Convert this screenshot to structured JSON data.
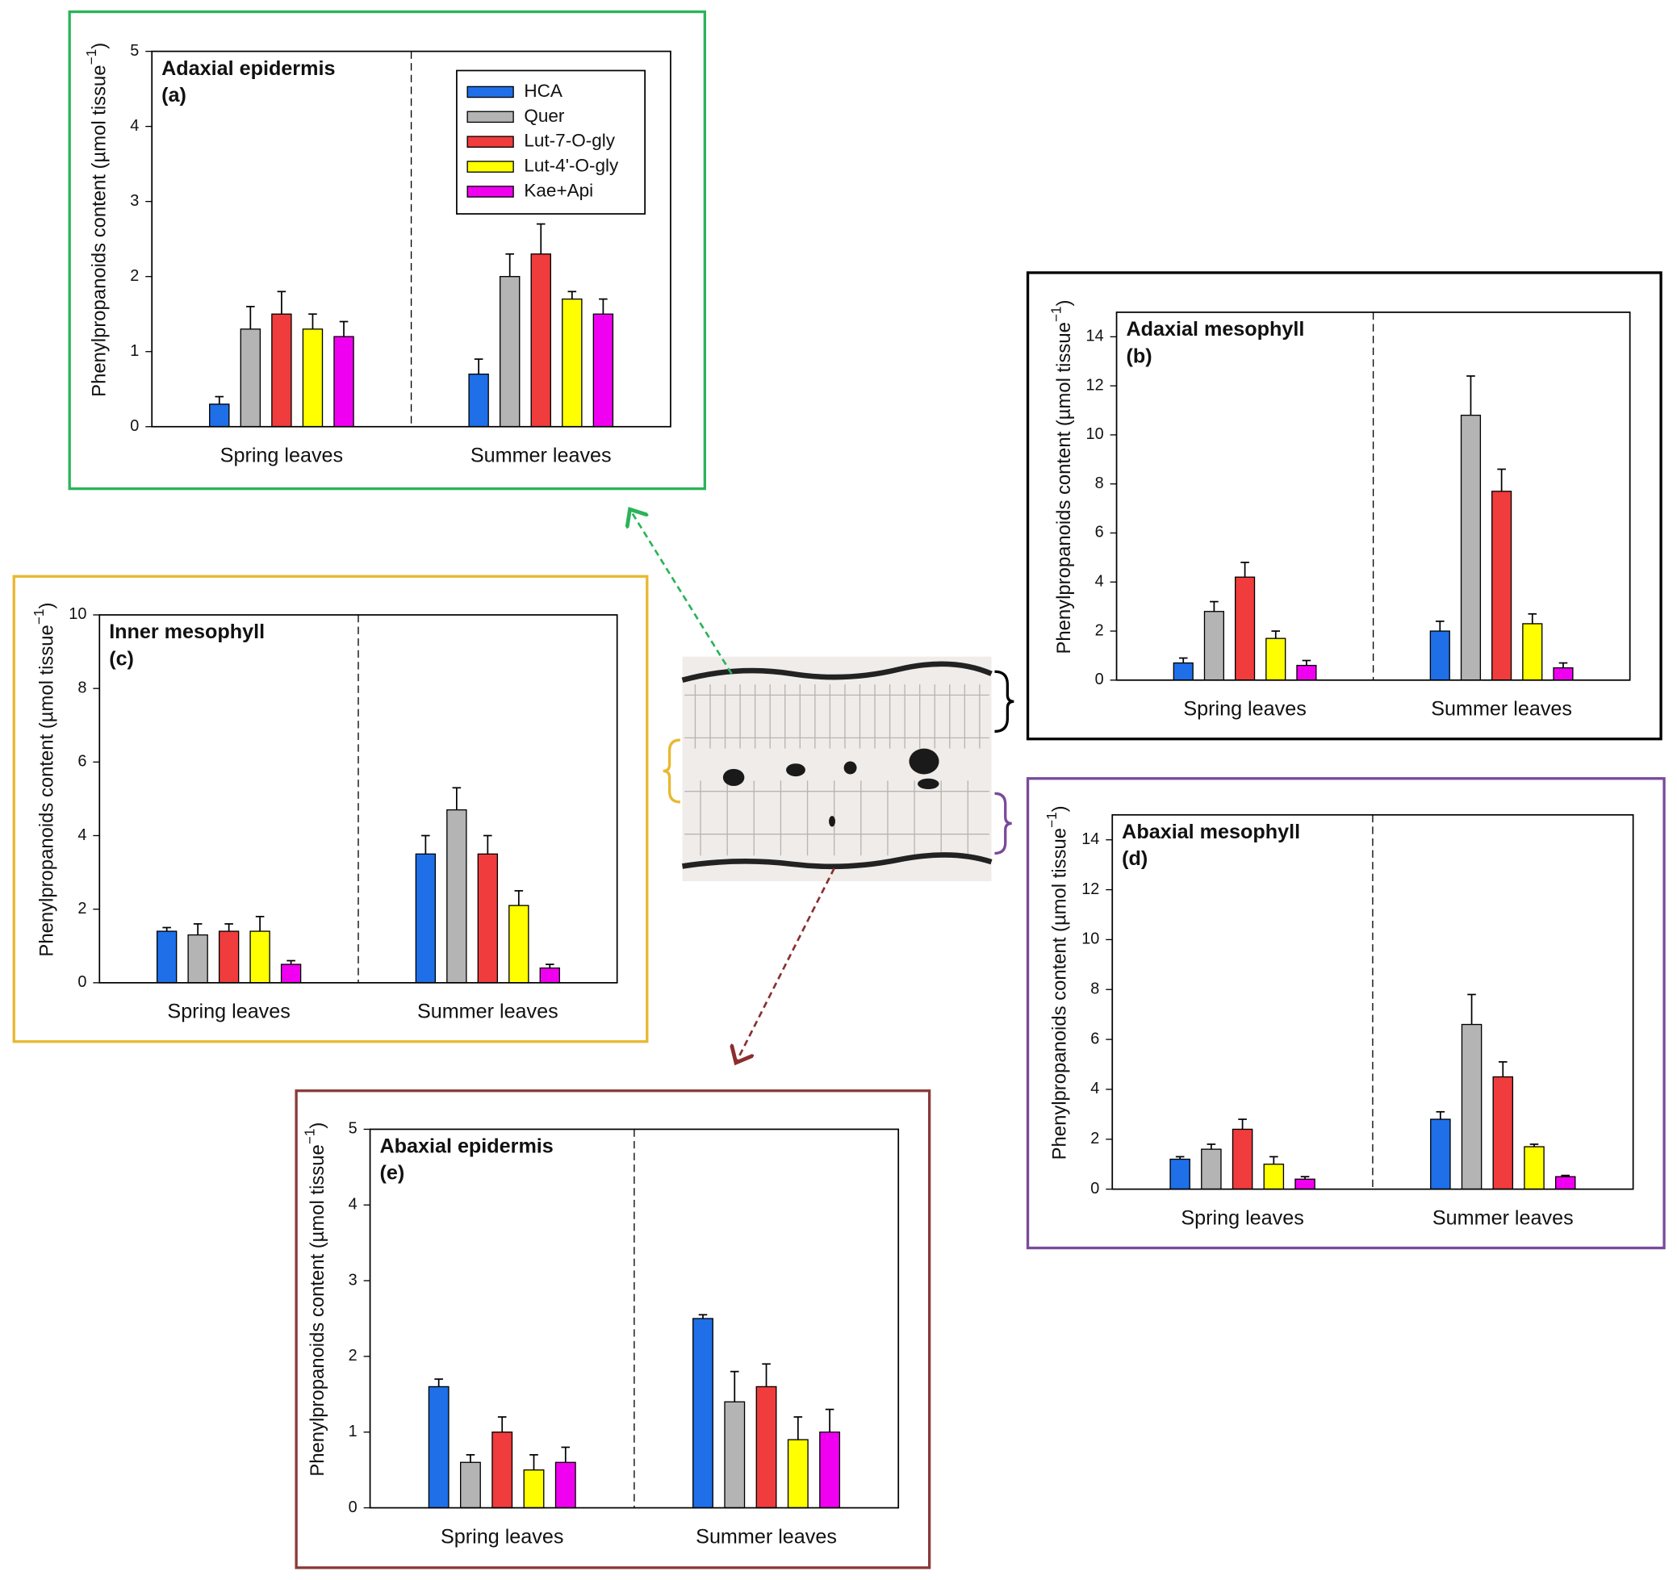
{
  "chart_data": [
    {
      "type": "bar",
      "title": "Adaxial epidermis",
      "panel_label": "(a)",
      "ylabel": {
        "text": "Phenylpropanoids content  (µmol tissue",
        "sup": "−1",
        "close": ")"
      },
      "categories": [
        "Spring leaves",
        "Summer leaves"
      ],
      "ylim": [
        0,
        5
      ],
      "yticks": [
        0,
        1,
        2,
        3,
        4,
        5
      ],
      "series": [
        {
          "name": "HCA",
          "color": "#1e6fe8",
          "values": [
            0.3,
            0.7
          ],
          "errors": [
            0.1,
            0.2
          ]
        },
        {
          "name": "Quer",
          "color": "#b4b4b4",
          "values": [
            1.3,
            2.0
          ],
          "errors": [
            0.3,
            0.3
          ]
        },
        {
          "name": "Lut-7-O-gly",
          "color": "#f03c3c",
          "values": [
            1.5,
            2.3
          ],
          "errors": [
            0.3,
            0.4
          ]
        },
        {
          "name": "Lut-4'-O-gly",
          "color": "#ffff00",
          "values": [
            1.3,
            1.7
          ],
          "errors": [
            0.2,
            0.1
          ]
        },
        {
          "name": "Kae+Api",
          "color": "#f000f0",
          "values": [
            1.2,
            1.5
          ],
          "errors": [
            0.2,
            0.2
          ]
        }
      ]
    },
    {
      "type": "bar",
      "title": "Adaxial mesophyll",
      "panel_label": "(b)",
      "ylabel": {
        "text": "Phenylpropanoids content  (µmol tissue",
        "sup": "−1",
        "close": ")"
      },
      "categories": [
        "Spring leaves",
        "Summer leaves"
      ],
      "ylim": [
        0,
        15
      ],
      "yticks": [
        0,
        2,
        4,
        6,
        8,
        10,
        12,
        14
      ],
      "series": [
        {
          "color": "#1e6fe8",
          "values": [
            0.7,
            2.0
          ],
          "errors": [
            0.2,
            0.4
          ]
        },
        {
          "color": "#b4b4b4",
          "values": [
            2.8,
            10.8
          ],
          "errors": [
            0.4,
            1.6
          ]
        },
        {
          "color": "#f03c3c",
          "values": [
            4.2,
            7.7
          ],
          "errors": [
            0.6,
            0.9
          ]
        },
        {
          "color": "#ffff00",
          "values": [
            1.7,
            2.3
          ],
          "errors": [
            0.3,
            0.4
          ]
        },
        {
          "color": "#f000f0",
          "values": [
            0.6,
            0.5
          ],
          "errors": [
            0.2,
            0.2
          ]
        }
      ]
    },
    {
      "type": "bar",
      "title": "Inner mesophyll",
      "panel_label": "(c)",
      "ylabel": {
        "text": "Phenylpropanoids content  (µmol tissue",
        "sup": "−1",
        "close": ")"
      },
      "categories": [
        "Spring leaves",
        "Summer leaves"
      ],
      "ylim": [
        0,
        10
      ],
      "yticks": [
        0,
        2,
        4,
        6,
        8,
        10
      ],
      "series": [
        {
          "color": "#1e6fe8",
          "values": [
            1.4,
            3.5
          ],
          "errors": [
            0.1,
            0.5
          ]
        },
        {
          "color": "#b4b4b4",
          "values": [
            1.3,
            4.7
          ],
          "errors": [
            0.3,
            0.6
          ]
        },
        {
          "color": "#f03c3c",
          "values": [
            1.4,
            3.5
          ],
          "errors": [
            0.2,
            0.5
          ]
        },
        {
          "color": "#ffff00",
          "values": [
            1.4,
            2.1
          ],
          "errors": [
            0.4,
            0.4
          ]
        },
        {
          "color": "#f000f0",
          "values": [
            0.5,
            0.4
          ],
          "errors": [
            0.1,
            0.1
          ]
        }
      ]
    },
    {
      "type": "bar",
      "title": "Abaxial mesophyll",
      "panel_label": "(d)",
      "ylabel": {
        "text": "Phenylpropanoids content  (µmol tissue",
        "sup": "−1",
        "close": ")"
      },
      "categories": [
        "Spring leaves",
        "Summer leaves"
      ],
      "ylim": [
        0,
        15
      ],
      "yticks": [
        0,
        2,
        4,
        6,
        8,
        10,
        12,
        14
      ],
      "series": [
        {
          "color": "#1e6fe8",
          "values": [
            1.2,
            2.8
          ],
          "errors": [
            0.1,
            0.3
          ]
        },
        {
          "color": "#b4b4b4",
          "values": [
            1.6,
            6.6
          ],
          "errors": [
            0.2,
            1.2
          ]
        },
        {
          "color": "#f03c3c",
          "values": [
            2.4,
            4.5
          ],
          "errors": [
            0.4,
            0.6
          ]
        },
        {
          "color": "#ffff00",
          "values": [
            1.0,
            1.7
          ],
          "errors": [
            0.3,
            0.1
          ]
        },
        {
          "color": "#f000f0",
          "values": [
            0.4,
            0.5
          ],
          "errors": [
            0.1,
            0.05
          ]
        }
      ]
    },
    {
      "type": "bar",
      "title": "Abaxial epidermis",
      "panel_label": "(e)",
      "ylabel": {
        "text": "Phenylpropanoids content  (µmol tissue",
        "sup": "−1",
        "close": ")"
      },
      "categories": [
        "Spring leaves",
        "Summer leaves"
      ],
      "ylim": [
        0,
        5
      ],
      "yticks": [
        0,
        1,
        2,
        3,
        4,
        5
      ],
      "series": [
        {
          "color": "#1e6fe8",
          "values": [
            1.6,
            2.5
          ],
          "errors": [
            0.1,
            0.05
          ]
        },
        {
          "color": "#b4b4b4",
          "values": [
            0.6,
            1.4
          ],
          "errors": [
            0.1,
            0.4
          ]
        },
        {
          "color": "#f03c3c",
          "values": [
            1.0,
            1.6
          ],
          "errors": [
            0.2,
            0.3
          ]
        },
        {
          "color": "#ffff00",
          "values": [
            0.5,
            0.9
          ],
          "errors": [
            0.2,
            0.3
          ]
        },
        {
          "color": "#f000f0",
          "values": [
            0.6,
            1.0
          ],
          "errors": [
            0.2,
            0.3
          ]
        }
      ]
    }
  ]
}
